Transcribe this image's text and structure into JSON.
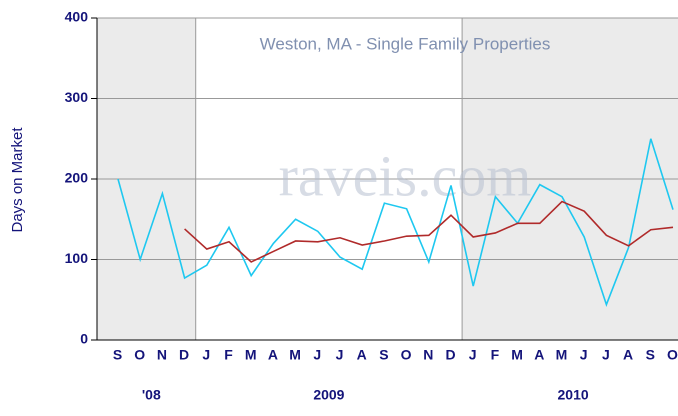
{
  "chart_data": {
    "type": "line",
    "title": "Weston, MA - Single Family Properties",
    "watermark": "raveis.com",
    "y_label": "Days on Market",
    "categories": [
      "S",
      "O",
      "N",
      "D",
      "J",
      "F",
      "M",
      "A",
      "M",
      "J",
      "J",
      "A",
      "S",
      "O",
      "N",
      "D",
      "J",
      "F",
      "M",
      "A",
      "M",
      "J",
      "J",
      "A",
      "S",
      "O"
    ],
    "years": [
      "'08",
      "2009",
      "2010"
    ],
    "series": [
      {
        "color": "#1ec8f0",
        "values": [
          200,
          100,
          182,
          77,
          93,
          140,
          80,
          120,
          150,
          135,
          103,
          88,
          170,
          163,
          97,
          192,
          67,
          178,
          145,
          193,
          178,
          128,
          44,
          115,
          250,
          162
        ]
      },
      {
        "color": "#b02a2a",
        "values": [
          null,
          null,
          null,
          138,
          113,
          122,
          97,
          110,
          123,
          122,
          127,
          118,
          123,
          129,
          130,
          155,
          128,
          133,
          145,
          145,
          172,
          160,
          130,
          117,
          137,
          140
        ]
      }
    ],
    "ylim": [
      0,
      400
    ],
    "yticks": [
      0,
      100,
      200,
      300,
      400
    ],
    "grid": true
  }
}
